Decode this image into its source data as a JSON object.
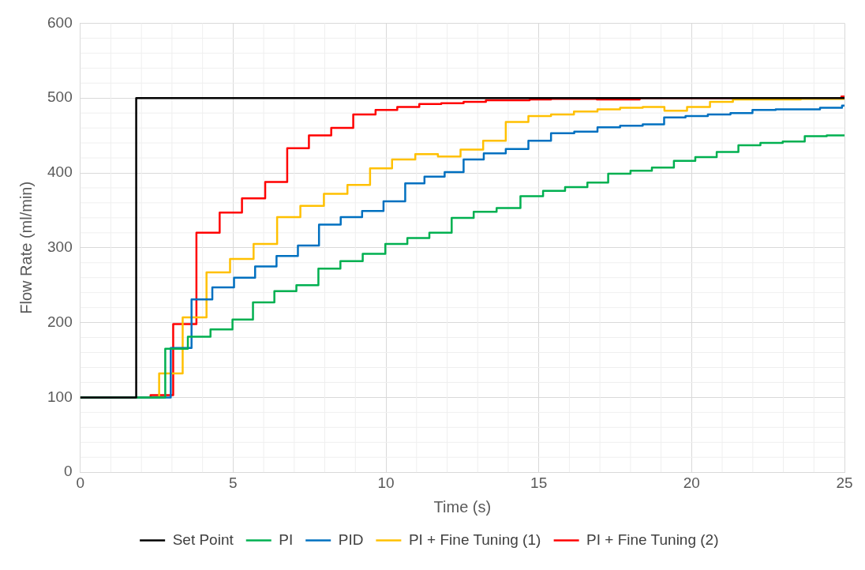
{
  "chart_data": {
    "type": "step",
    "xlabel": "Time (s)",
    "ylabel": "Flow Rate (ml/min)",
    "xlim": [
      0,
      25
    ],
    "ylim": [
      0,
      600
    ],
    "xticks": [
      0,
      5,
      10,
      15,
      20,
      25
    ],
    "yticks": [
      0,
      100,
      200,
      300,
      400,
      500,
      600
    ],
    "grid": true,
    "legend": "bottom",
    "marker": "none",
    "line_style": "solid",
    "series": [
      {
        "name": "Set Point",
        "color": "#000000",
        "x": [
          0,
          1.83,
          25
        ],
        "values": [
          100,
          500,
          500
        ]
      },
      {
        "name": "PI",
        "color": "#00b050",
        "x": [
          0,
          2.78,
          3.52,
          4.26,
          4.98,
          5.65,
          6.35,
          7.07,
          7.79,
          8.51,
          9.24,
          9.98,
          10.7,
          11.42,
          12.15,
          12.87,
          13.62,
          14.4,
          15.14,
          15.86,
          16.59,
          17.27,
          18.0,
          18.7,
          19.42,
          20.12,
          20.82,
          21.53,
          22.25,
          22.98,
          23.7,
          24.42,
          25
        ],
        "values": [
          100,
          165,
          181,
          191,
          204,
          227,
          242,
          250,
          272,
          282,
          292,
          305,
          313,
          320,
          340,
          348,
          353,
          369,
          376,
          381,
          387,
          399,
          403,
          407,
          416,
          421,
          428,
          437,
          440,
          442,
          449,
          450,
          450
        ]
      },
      {
        "name": "PID",
        "color": "#0070c0",
        "x": [
          0,
          2.96,
          3.64,
          4.32,
          5.03,
          5.72,
          6.42,
          7.12,
          7.81,
          8.52,
          9.22,
          9.92,
          10.63,
          11.26,
          11.92,
          12.54,
          13.2,
          13.92,
          14.66,
          15.4,
          16.16,
          16.92,
          17.66,
          18.4,
          19.1,
          19.8,
          20.53,
          21.27,
          21.99,
          22.75,
          24.2,
          24.92,
          25
        ],
        "values": [
          100,
          166,
          231,
          247,
          260,
          275,
          289,
          303,
          331,
          341,
          349,
          362,
          386,
          395,
          401,
          418,
          426,
          432,
          443,
          453,
          455,
          461,
          463,
          465,
          474,
          476,
          478,
          480,
          484,
          485,
          487,
          490,
          490
        ]
      },
      {
        "name": "PI + Fine Tuning (1)",
        "color": "#ffc000",
        "x": [
          0,
          2.58,
          3.35,
          4.13,
          4.9,
          5.67,
          6.44,
          7.2,
          7.97,
          8.74,
          9.48,
          10.2,
          10.96,
          11.7,
          12.44,
          13.18,
          13.92,
          14.66,
          15.4,
          16.15,
          16.92,
          17.66,
          18.4,
          19.11,
          19.85,
          20.6,
          21.35,
          23.57,
          25
        ],
        "values": [
          100,
          132,
          207,
          267,
          285,
          305,
          341,
          356,
          372,
          384,
          406,
          418,
          425,
          422,
          431,
          443,
          468,
          476,
          478,
          482,
          485,
          487,
          488,
          483,
          488,
          495,
          498,
          499,
          499
        ]
      },
      {
        "name": "PI + Fine Tuning (2)",
        "color": "#ff0000",
        "x": [
          0,
          2.3,
          3.04,
          3.8,
          4.56,
          5.29,
          6.05,
          6.77,
          7.48,
          8.21,
          8.93,
          9.66,
          10.37,
          11.09,
          11.81,
          12.54,
          13.27,
          14.7,
          15.4,
          16.9,
          18.3,
          24.9,
          25
        ],
        "values": [
          100,
          103,
          198,
          320,
          347,
          366,
          388,
          433,
          450,
          460,
          478,
          484,
          488,
          492,
          493,
          495,
          497,
          498,
          499,
          498,
          500,
          502,
          502
        ]
      }
    ]
  }
}
